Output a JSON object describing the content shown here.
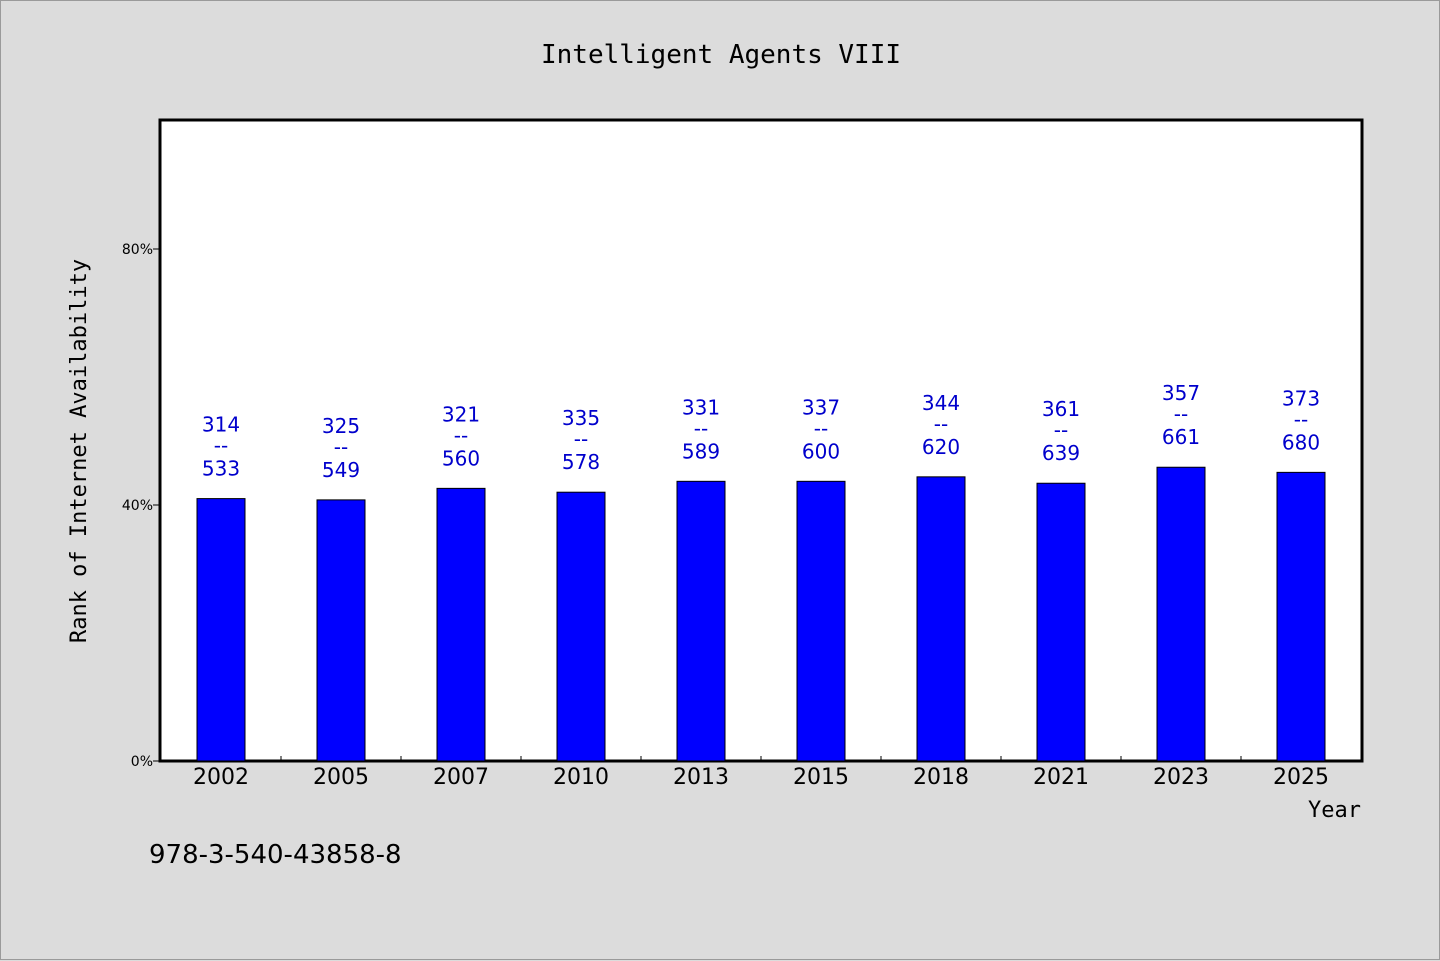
{
  "chart_data": {
    "type": "bar",
    "title": "Intelligent Agents VIII",
    "xlabel": "Year",
    "ylabel": "Rank of Internet Availability",
    "ylim": [
      0,
      100
    ],
    "yticks": [
      0,
      40,
      80
    ],
    "ytick_labels": [
      "0%",
      "40%",
      "80%"
    ],
    "grid": false,
    "legend": "none",
    "categories": [
      "2002",
      "2005",
      "2007",
      "2010",
      "2013",
      "2015",
      "2018",
      "2021",
      "2023",
      "2025"
    ],
    "series": [
      {
        "values": [
          41.0,
          40.8,
          42.6,
          42.0,
          43.7,
          43.7,
          44.4,
          43.4,
          45.9,
          45.1
        ],
        "color": "#0000ff"
      }
    ],
    "bar_labels": [
      {
        "top": "314",
        "sep": "--",
        "bottom": "533"
      },
      {
        "top": "325",
        "sep": "--",
        "bottom": "549"
      },
      {
        "top": "321",
        "sep": "--",
        "bottom": "560"
      },
      {
        "top": "335",
        "sep": "--",
        "bottom": "578"
      },
      {
        "top": "331",
        "sep": "--",
        "bottom": "589"
      },
      {
        "top": "337",
        "sep": "--",
        "bottom": "600"
      },
      {
        "top": "344",
        "sep": "--",
        "bottom": "620"
      },
      {
        "top": "361",
        "sep": "--",
        "bottom": "639"
      },
      {
        "top": "357",
        "sep": "--",
        "bottom": "661"
      },
      {
        "top": "373",
        "sep": "--",
        "bottom": "680"
      }
    ],
    "label_color": "#0000cc",
    "footnote": "978-3-540-43858-8"
  }
}
